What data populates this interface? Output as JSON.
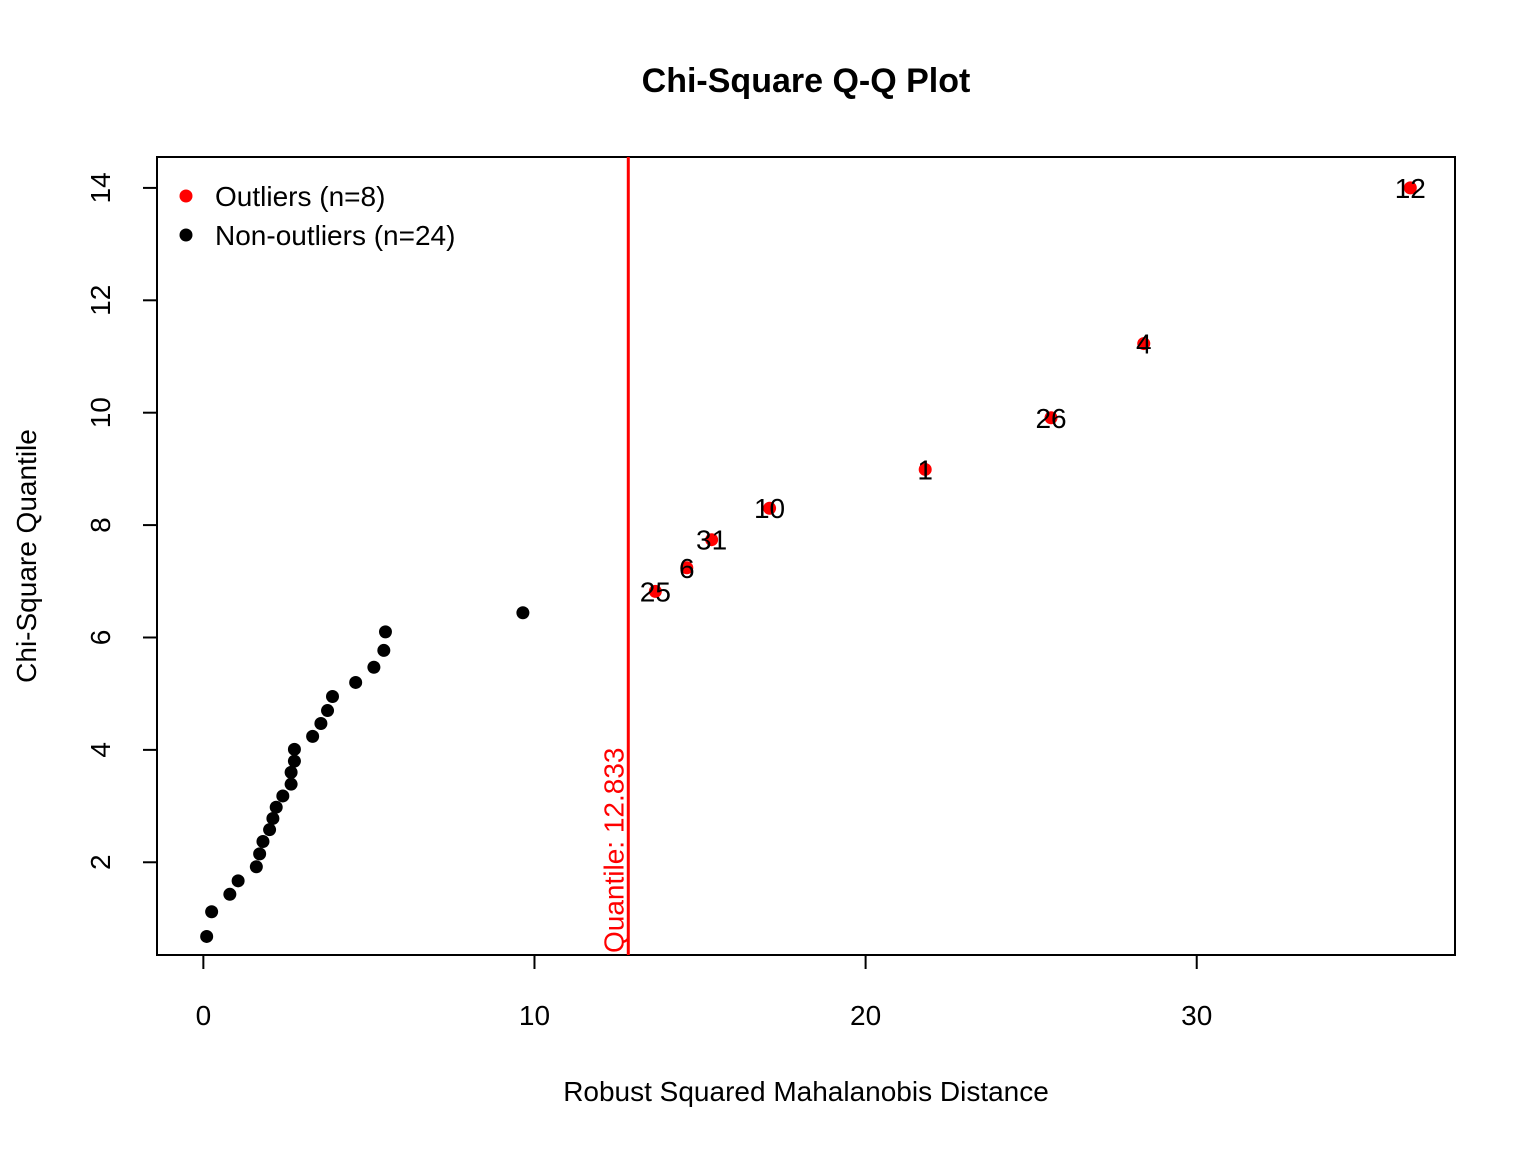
{
  "chart_data": {
    "type": "scatter",
    "title": "Chi-Square Q-Q Plot",
    "xlabel": "Robust Squared Mahalanobis Distance",
    "ylabel": "Chi-Square Quantile",
    "xlim": [
      -1.4,
      37.8
    ],
    "ylim": [
      0.35,
      14.55
    ],
    "x_ticks": [
      0,
      10,
      20,
      30
    ],
    "y_ticks": [
      2,
      4,
      6,
      8,
      10,
      12,
      14
    ],
    "grid": false,
    "legend": {
      "position": "top-left",
      "entries": [
        {
          "label": "Outliers (n=8)",
          "color": "#ff0000"
        },
        {
          "label": "Non-outliers (n=24)",
          "color": "#000000"
        }
      ]
    },
    "cutoff": {
      "x": 12.833,
      "label": "Quantile:  12.833",
      "color": "#ff0000"
    },
    "series": [
      {
        "name": "Non-outliers (n=24)",
        "color": "#000000",
        "points": [
          {
            "x": 0.1,
            "y": 0.68
          },
          {
            "x": 0.25,
            "y": 1.12
          },
          {
            "x": 0.8,
            "y": 1.43
          },
          {
            "x": 1.05,
            "y": 1.67
          },
          {
            "x": 1.6,
            "y": 1.92
          },
          {
            "x": 1.7,
            "y": 2.15
          },
          {
            "x": 1.8,
            "y": 2.37
          },
          {
            "x": 2.0,
            "y": 2.58
          },
          {
            "x": 2.1,
            "y": 2.78
          },
          {
            "x": 2.2,
            "y": 2.98
          },
          {
            "x": 2.4,
            "y": 3.18
          },
          {
            "x": 2.65,
            "y": 3.39
          },
          {
            "x": 2.65,
            "y": 3.6
          },
          {
            "x": 2.75,
            "y": 3.8
          },
          {
            "x": 2.75,
            "y": 4.01
          },
          {
            "x": 3.3,
            "y": 4.24
          },
          {
            "x": 3.55,
            "y": 4.47
          },
          {
            "x": 3.75,
            "y": 4.7
          },
          {
            "x": 3.9,
            "y": 4.95
          },
          {
            "x": 4.6,
            "y": 5.2
          },
          {
            "x": 5.15,
            "y": 5.47
          },
          {
            "x": 5.45,
            "y": 5.77
          },
          {
            "x": 5.5,
            "y": 6.1
          },
          {
            "x": 9.65,
            "y": 6.44
          }
        ]
      },
      {
        "name": "Outliers (n=8)",
        "color": "#ff0000",
        "points": [
          {
            "x": 13.65,
            "y": 6.82,
            "label": "25"
          },
          {
            "x": 14.6,
            "y": 7.24,
            "label": "6"
          },
          {
            "x": 15.35,
            "y": 7.74,
            "label": "31"
          },
          {
            "x": 17.1,
            "y": 8.3,
            "label": "10"
          },
          {
            "x": 21.8,
            "y": 8.99,
            "label": "1"
          },
          {
            "x": 25.6,
            "y": 9.91,
            "label": "26"
          },
          {
            "x": 28.4,
            "y": 11.23,
            "label": "4"
          },
          {
            "x": 36.45,
            "y": 14.0,
            "label": "12"
          }
        ]
      }
    ]
  }
}
